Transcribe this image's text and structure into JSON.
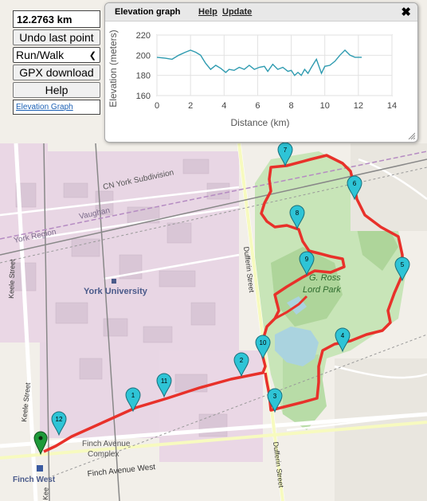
{
  "panel": {
    "distance": "12.2763 km",
    "undo_label": "Undo last point",
    "mode_value": "Run/Walk",
    "gpx_label": "GPX download",
    "help_label": "Help",
    "elevation_link": "Elevation Graph"
  },
  "elevation_window": {
    "title": "Elevation graph",
    "help_link": "Help",
    "update_link": "Update",
    "close_icon": "close-icon"
  },
  "chart_data": {
    "type": "line",
    "xlabel": "Distance (km)",
    "ylabel": "Elevation (meters)",
    "xlim": [
      0,
      14
    ],
    "ylim": [
      160,
      220
    ],
    "xticks": [
      0,
      2,
      4,
      6,
      8,
      10,
      12,
      14
    ],
    "yticks": [
      160,
      180,
      200,
      220
    ],
    "grid": true,
    "line_color": "#2e9bb0",
    "x": [
      0,
      0.5,
      0.9,
      1.3,
      1.7,
      2.0,
      2.3,
      2.6,
      2.9,
      3.2,
      3.5,
      3.8,
      4.1,
      4.3,
      4.6,
      4.9,
      5.2,
      5.5,
      5.8,
      6.1,
      6.4,
      6.6,
      6.9,
      7.2,
      7.5,
      7.8,
      8.0,
      8.2,
      8.4,
      8.6,
      8.8,
      9.0,
      9.2,
      9.5,
      9.8,
      10.0,
      10.3,
      10.6,
      10.9,
      11.2,
      11.5,
      11.8,
      12.2
    ],
    "y": [
      198,
      197,
      196,
      200,
      203,
      205,
      203,
      200,
      192,
      186,
      190,
      187,
      183,
      186,
      185,
      188,
      186,
      190,
      186,
      188,
      189,
      184,
      191,
      186,
      188,
      184,
      185,
      180,
      183,
      180,
      186,
      182,
      188,
      196,
      182,
      189,
      190,
      194,
      200,
      205,
      200,
      198,
      198
    ]
  },
  "map": {
    "labels": {
      "cn_york": "CN York Subdivision",
      "vaughan": "Vaughan",
      "york_region": "York Region",
      "york_university": "York University",
      "keele_street_top": "Keele Street",
      "keele_street_bottom": "Keele Street",
      "dufferin_street_top": "Dufferin Street",
      "dufferin_street_bottom": "Dufferin Street",
      "park_line1": "G. Ross",
      "park_line2": "Lord Park",
      "finch_complex_1": "Finch Avenue",
      "finch_complex_2": "Complex",
      "finch_avenue_west": "Finch Avenue West",
      "finch_west": "Finch West",
      "keele_stub": "Kee"
    },
    "route_color": "#e8312a",
    "markers": [
      "1",
      "2",
      "3",
      "4",
      "5",
      "6",
      "7",
      "8",
      "9",
      "10",
      "11",
      "12"
    ],
    "start_marker": "start-pin"
  }
}
